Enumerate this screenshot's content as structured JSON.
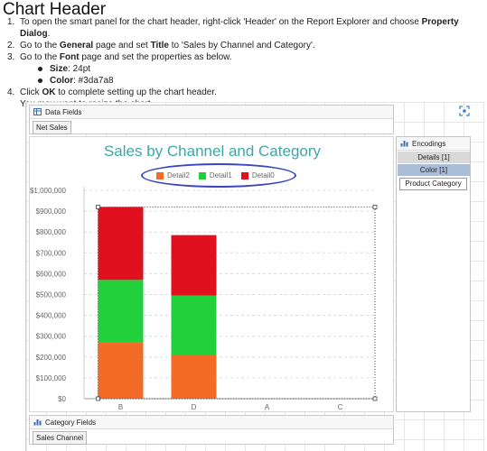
{
  "doc": {
    "title": "Chart Header",
    "steps": [
      {
        "num": "1.",
        "pre": "To open the smart panel for the chart header, right-click 'Header' on the Report Explorer and choose ",
        "bold": "Property Dialog",
        "post": "."
      },
      {
        "num": "2.",
        "pre": "Go to the ",
        "bold": "General",
        "mid": " page and set ",
        "bold2": "Title",
        "post": " to 'Sales by Channel and Category'."
      },
      {
        "num": "3.",
        "pre": "Go to the ",
        "bold": "Font",
        "post": " page and set the properties as below."
      },
      {
        "num": "4.",
        "pre": "Click ",
        "bold": "OK",
        "post": " to complete setting up the chart header."
      }
    ],
    "font_props": [
      {
        "label": "Size",
        "value": ": 24pt"
      },
      {
        "label": "Color",
        "value": ": #3da7a8"
      }
    ],
    "note": "You may want to resize the chart."
  },
  "data_fields": {
    "header": "Data Fields",
    "chip": "Net Sales"
  },
  "category_fields": {
    "header": "Category Fields",
    "chip": "Sales Channel"
  },
  "encodings": {
    "header": "Encodings",
    "details": "Details [1]",
    "color": "Color [1]",
    "field": "Product Category"
  },
  "colors": {
    "detail2": "#f26b27",
    "detail1": "#22d03c",
    "detail0": "#e0101f",
    "title": "#3da7a8"
  },
  "chart_data": {
    "type": "bar",
    "title": "Sales by Channel and Category",
    "categories": [
      "B",
      "D",
      "A",
      "C"
    ],
    "series": [
      {
        "name": "Detail2",
        "values": [
          270000,
          210000,
          0,
          0
        ]
      },
      {
        "name": "Detail1",
        "values": [
          300000,
          285000,
          0,
          0
        ]
      },
      {
        "name": "Detail0",
        "values": [
          350000,
          290000,
          0,
          0
        ]
      }
    ],
    "stacked": true,
    "ylim": [
      0,
      1000000
    ],
    "yticks": [
      "$0",
      "$100,000",
      "$200,000",
      "$300,000",
      "$400,000",
      "$500,000",
      "$600,000",
      "$700,000",
      "$800,000",
      "$900,000",
      "$1,000,000"
    ],
    "legend": "top-center",
    "grid": true
  }
}
